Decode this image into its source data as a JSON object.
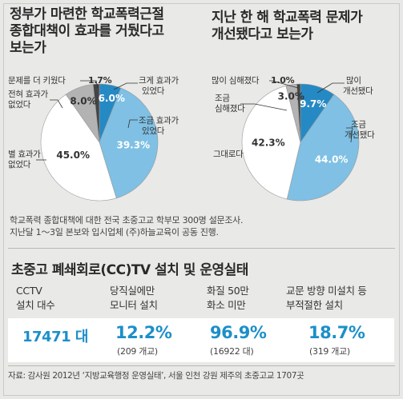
{
  "chart_data": [
    {
      "type": "pie",
      "title": [
        "정부가 마련한 학교폭력근절",
        "종합대책이 효과를 거뒀다고",
        "보는가"
      ],
      "slices": [
        {
          "label": [
            "크게 효과가",
            "있었다"
          ],
          "value": 6.0,
          "value_label": "6.0%",
          "color": "#2589c4"
        },
        {
          "label": [
            "조금 효과가",
            "있었다"
          ],
          "value": 39.3,
          "value_label": "39.3%",
          "color": "#7fc0e4"
        },
        {
          "label": [
            "별 효과가",
            "없었다"
          ],
          "value": 45.0,
          "value_label": "45.0%",
          "color": "#ffffff"
        },
        {
          "label": [
            "전혀 효과가",
            "없었다"
          ],
          "value": 8.0,
          "value_label": "8.0%",
          "color": "#b3b3b3"
        },
        {
          "label": [
            "문제를 더 키웠다"
          ],
          "value": 1.7,
          "value_label": "1.7%",
          "color": "#444444"
        }
      ]
    },
    {
      "type": "pie",
      "title": [
        "지난 한 해 학교폭력 문제가",
        "개선됐다고 보는가"
      ],
      "slices": [
        {
          "label": [
            "많이",
            "개선됐다"
          ],
          "value": 9.7,
          "value_label": "9.7%",
          "color": "#2589c4"
        },
        {
          "label": [
            "조금",
            "개선됐다"
          ],
          "value": 44.0,
          "value_label": "44.0%",
          "color": "#7fc0e4"
        },
        {
          "label": [
            "그대로다"
          ],
          "value": 42.3,
          "value_label": "42.3%",
          "color": "#ffffff"
        },
        {
          "label": [
            "조금",
            "심해졌다"
          ],
          "value": 3.0,
          "value_label": "3.0%",
          "color": "#b3b3b3"
        },
        {
          "label": [
            "많이 심해졌다"
          ],
          "value": 1.0,
          "value_label": "1.0%",
          "color": "#444444"
        }
      ]
    }
  ],
  "survey_note": [
    "학교폭력 종합대책에 대한 전국 초중고교 학부모 300명 설문조사.",
    "지난달 1～3일 본보와 입시업체 (주)하늘교육이 공동 진행."
  ],
  "cctv": {
    "title": "초중고 폐쇄회로(CC)TV 설치 및 운영실태",
    "columns": [
      {
        "head": [
          "CCTV",
          "설치 대수"
        ],
        "value": "17471 대",
        "sub": ""
      },
      {
        "head": [
          "당직실에만",
          "모니터 설치"
        ],
        "value": "12.2%",
        "sub": "(209 개교)"
      },
      {
        "head": [
          "화질 50만",
          "화소 미만"
        ],
        "value": "96.9%",
        "sub": "(16922 대)"
      },
      {
        "head": [
          "교문 방향 미설치 등",
          "부적절한 설치"
        ],
        "value": "18.7%",
        "sub": "(319 개교)"
      }
    ],
    "source": "자료: 감사원 2012년 ‘지방교육행정 운영실태’, 서울 인천 강원 제주의 초중고교 1707곳"
  }
}
